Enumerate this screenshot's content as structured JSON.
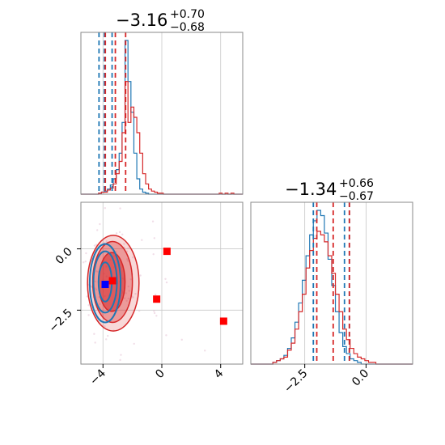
{
  "colors": {
    "series_blue": "#1f77b4",
    "series_red": "#d62728",
    "marker_red": "#ff0000",
    "marker_blue": "#0000ff",
    "grid": "#c8c8c8",
    "frame": "#888888"
  },
  "chart_data": [
    {
      "type": "histogram",
      "panel": "marginal-x1",
      "title": {
        "main": "−3.16",
        "sup": "+0.70",
        "sub": "−0.68"
      },
      "xlim": [
        -5.5,
        5.5
      ],
      "grid": true,
      "bin_start": -5.5,
      "bin_width": 0.2,
      "series": [
        {
          "color": "blue",
          "counts": [
            0,
            0,
            0,
            0,
            0,
            0,
            1,
            2,
            3,
            5,
            9,
            15,
            24,
            40,
            70,
            150,
            110,
            80,
            40,
            15,
            5,
            2,
            1,
            0,
            0,
            0,
            0,
            0,
            0,
            0,
            0,
            0,
            0,
            0,
            0,
            0,
            0,
            0,
            0,
            0,
            0,
            0,
            0,
            0,
            0,
            0,
            0,
            0,
            0,
            0,
            0,
            0,
            0,
            0,
            0
          ]
        },
        {
          "color": "red",
          "counts": [
            0,
            0,
            0,
            0,
            0,
            0,
            1,
            2,
            2,
            4,
            6,
            10,
            20,
            32,
            60,
            110,
            70,
            85,
            75,
            60,
            40,
            20,
            10,
            5,
            3,
            2,
            1,
            1,
            0,
            0,
            0,
            0,
            0,
            0,
            0,
            0,
            0,
            0,
            0,
            0,
            0,
            0,
            0,
            0,
            0,
            0,
            0,
            1,
            0,
            1,
            0,
            1,
            0,
            0,
            0
          ]
        }
      ],
      "quantiles": {
        "blue": [
          -4.27,
          -3.9,
          -3.38
        ],
        "red": [
          -3.84,
          -3.16,
          -2.46
        ]
      }
    },
    {
      "type": "histogram",
      "panel": "marginal-x2",
      "title": {
        "main": "−1.34",
        "sup": "+0.66",
        "sub": "−0.67"
      },
      "xlim": [
        -4.7,
        1.9
      ],
      "grid": true,
      "bin_start": -4.7,
      "bin_width": 0.15,
      "series": [
        {
          "color": "blue",
          "counts": [
            0,
            0,
            0,
            0,
            0,
            0,
            1,
            2,
            3,
            5,
            9,
            15,
            24,
            35,
            48,
            62,
            74,
            82,
            88,
            85,
            75,
            60,
            45,
            30,
            18,
            10,
            6,
            3,
            2,
            1,
            0,
            0,
            0,
            0,
            0,
            0,
            0,
            0,
            0,
            0,
            0,
            0,
            0,
            0
          ]
        },
        {
          "color": "red",
          "counts": [
            0,
            0,
            0,
            0,
            0,
            0,
            1,
            2,
            3,
            4,
            8,
            12,
            20,
            30,
            40,
            55,
            65,
            72,
            76,
            74,
            70,
            62,
            52,
            40,
            30,
            20,
            14,
            9,
            6,
            4,
            3,
            2,
            1,
            1,
            0,
            0,
            0,
            0,
            0,
            0,
            0,
            0,
            0,
            0
          ]
        }
      ],
      "quantiles": {
        "blue": [
          -2.15,
          -0.88,
          -0.68
        ],
        "red": [
          -2.01,
          -1.34,
          -0.68
        ]
      }
    },
    {
      "type": "scatter",
      "panel": "joint-x1-x2",
      "xlim": [
        -5.5,
        5.5
      ],
      "ylim": [
        -4.7,
        1.9
      ],
      "grid": true,
      "contours_red": [
        {
          "cx": -3.4,
          "cy": -1.35,
          "rx": 0.9,
          "ry": 1.2,
          "fill_opacity": 0.55
        },
        {
          "cx": -3.35,
          "cy": -1.35,
          "rx": 1.35,
          "ry": 1.65,
          "fill_opacity": 0.35
        },
        {
          "cx": -3.3,
          "cy": -1.4,
          "rx": 1.75,
          "ry": 1.95,
          "fill_opacity": 0.18
        }
      ],
      "contours_blue": [
        {
          "cx": -3.85,
          "cy": -1.35,
          "rx": 0.45,
          "ry": 0.8
        },
        {
          "cx": -3.85,
          "cy": -1.35,
          "rx": 0.8,
          "ry": 1.25
        },
        {
          "cx": -3.85,
          "cy": -1.4,
          "rx": 1.05,
          "ry": 1.6
        }
      ],
      "markers": [
        {
          "x": 0.35,
          "y": -0.1,
          "color": "red"
        },
        {
          "x": -0.35,
          "y": -2.05,
          "color": "red"
        },
        {
          "x": 4.2,
          "y": -2.95,
          "color": "red"
        },
        {
          "x": -3.35,
          "y": -1.3,
          "color": "red"
        },
        {
          "x": -3.85,
          "y": -1.45,
          "color": "blue"
        }
      ]
    }
  ],
  "axes": {
    "x1_ticks": [
      {
        "v": -4,
        "label": "−4"
      },
      {
        "v": 0,
        "label": "0"
      },
      {
        "v": 4,
        "label": "4"
      }
    ],
    "x2_ticks": [
      {
        "v": -2.5,
        "label": "−2.5"
      },
      {
        "v": 0.0,
        "label": "0.0"
      }
    ],
    "y_ticks": [
      {
        "v": 0.0,
        "label": "0.0"
      },
      {
        "v": -2.5,
        "label": "−2.5"
      }
    ]
  }
}
